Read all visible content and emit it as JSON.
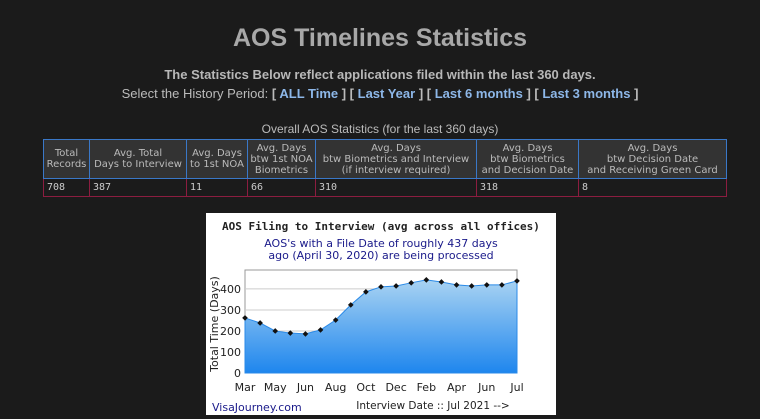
{
  "header": {
    "title": "AOS Timelines Statistics",
    "subtitle": "The Statistics Below reflect applications filed within the last 360 days.",
    "period_prompt": "Select the History Period:",
    "period_links": [
      "ALL Time",
      "Last Year",
      "Last 6 months",
      "Last 3 months"
    ]
  },
  "table": {
    "caption": "Overall AOS Statistics (for the last 360 days)",
    "columns": [
      "Total\nRecords",
      "Avg. Total\nDays to Interview",
      "Avg. Days\nto 1st NOA",
      "Avg. Days\nbtw 1st NOA\nBiometrics",
      "Avg. Days\nbtw Biometrics and Interview\n(if interview required)",
      "Avg. Days\nbtw Biometrics\nand Decision Date",
      "Avg. Days\nbtw Decision Date\nand Receiving Green Card"
    ],
    "rows": [
      [
        "708",
        "387",
        "11",
        "66",
        "310",
        "318",
        "8"
      ]
    ]
  },
  "chart_data": {
    "type": "area",
    "title": "AOS Filing to Interview (avg across all offices)",
    "annotation": [
      "AOS's with a File Date of roughly 437 days",
      "ago (April 30, 2020) are being processed"
    ],
    "y_label": "Total Time (Days)",
    "x_label": "Interview Date :: Jul 2021 -->",
    "source": "VisaJourney.com",
    "categories": [
      "Mar",
      null,
      "May",
      null,
      "Jun",
      null,
      "Aug",
      null,
      "Oct",
      null,
      "Dec",
      null,
      "Feb",
      null,
      "Apr",
      null,
      "Jun",
      null,
      "Jul"
    ],
    "series": [
      {
        "name": "Total Time",
        "color": "#2a8ae8",
        "values": [
          262,
          238,
          200,
          190,
          186,
          205,
          252,
          324,
          386,
          410,
          414,
          429,
          443,
          433,
          419,
          414,
          419,
          419,
          438
        ]
      }
    ],
    "ylim": [
      0,
      490
    ],
    "yticks": [
      0,
      100,
      200,
      300,
      400
    ],
    "grid": true
  }
}
